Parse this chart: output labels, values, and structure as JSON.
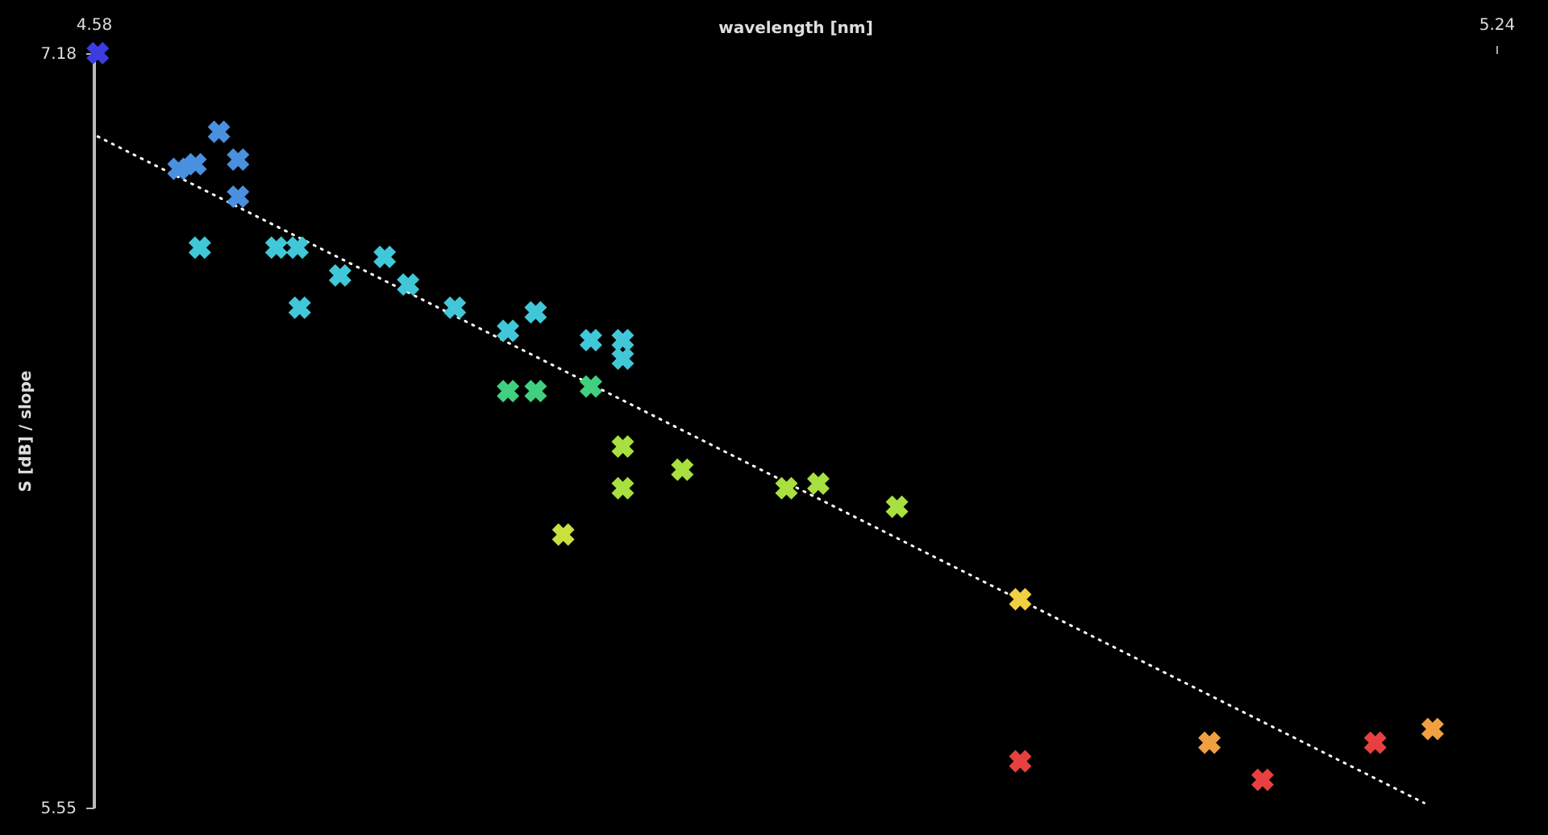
{
  "chart_data": {
    "type": "scatter",
    "xlabel": "wavelength [nm]",
    "ylabel": "S [dB] / slope",
    "xlim": [
      4.58,
      5.24
    ],
    "xticks": [
      4.58,
      5.24
    ],
    "ylim": [
      5.55,
      7.18
    ],
    "yticks": [
      5.55,
      7.18
    ],
    "marker": "cross",
    "series": [
      {
        "x": [
          4.582,
          4.62,
          4.628,
          4.639,
          4.648,
          4.648,
          4.63,
          4.666,
          4.676,
          4.677,
          4.696,
          4.717,
          4.728,
          4.75,
          4.775,
          4.788,
          4.814,
          4.829,
          4.829,
          4.775,
          4.788,
          4.814,
          4.829,
          4.829,
          4.857,
          4.801,
          4.906,
          4.921,
          4.958,
          5.016,
          5.016,
          5.105,
          5.13,
          5.183,
          5.21
        ],
        "values": [
          7.18,
          6.93,
          6.94,
          7.01,
          6.95,
          6.87,
          6.76,
          6.76,
          6.76,
          6.63,
          6.7,
          6.74,
          6.68,
          6.63,
          6.58,
          6.62,
          6.56,
          6.56,
          6.52,
          6.45,
          6.45,
          6.46,
          6.33,
          6.24,
          6.28,
          6.14,
          6.24,
          6.25,
          6.2,
          6.0,
          5.65,
          5.69,
          5.61,
          5.69,
          5.72
        ],
        "colors": [
          "#3c3ce0",
          "#4a90e0",
          "#4a90e0",
          "#4a90e0",
          "#4a90e0",
          "#4a90e0",
          "#40c8d8",
          "#40c8d8",
          "#40c8d8",
          "#40c8d8",
          "#40c8d8",
          "#40c8d8",
          "#40c8d8",
          "#40c8d8",
          "#40c8d8",
          "#40c8d8",
          "#40c8d8",
          "#40c8d8",
          "#40c8d8",
          "#40d080",
          "#40d080",
          "#40d080",
          "#a8e040",
          "#a8e040",
          "#a8e040",
          "#c8e040",
          "#a8e040",
          "#a8e040",
          "#a8e040",
          "#f0d040",
          "#e84040",
          "#f0a040",
          "#e84040",
          "#e84040",
          "#f0a040"
        ]
      },
      {
        "type": "line",
        "x": [
          4.582,
          5.206
        ],
        "values": [
          7.0,
          5.56
        ],
        "color": "#ffffff",
        "line_style": "dotted",
        "marker": "none"
      }
    ]
  }
}
